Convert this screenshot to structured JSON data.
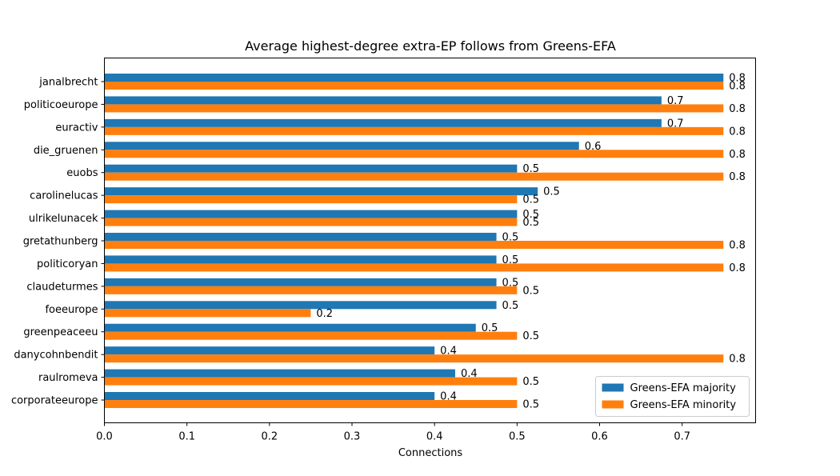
{
  "chart_data": {
    "type": "bar",
    "orientation": "horizontal",
    "title": "Average highest-degree extra-EP follows from Greens-EFA",
    "xlabel": "Connections",
    "ylabel": "",
    "xlim": [
      0,
      0.789
    ],
    "xticks": [
      0.0,
      0.1,
      0.2,
      0.3,
      0.4,
      0.5,
      0.6,
      0.7
    ],
    "xtick_labels": [
      "0.0",
      "0.1",
      "0.2",
      "0.3",
      "0.4",
      "0.5",
      "0.6",
      "0.7"
    ],
    "categories": [
      "janalbrecht",
      "politicoeurope",
      "euractiv",
      "die_gruenen",
      "euobs",
      "carolinelucas",
      "ulrikelunacek",
      "gretathunberg",
      "politicoryan",
      "claudeturmes",
      "foeeurope",
      "greenpeaceeu",
      "danycohnbendit",
      "raulromeva",
      "corporateeurope"
    ],
    "series": [
      {
        "name": "Greens-EFA majority",
        "color": "#1f77b4",
        "values": [
          0.75,
          0.675,
          0.675,
          0.575,
          0.5,
          0.525,
          0.5,
          0.475,
          0.475,
          0.475,
          0.475,
          0.45,
          0.4,
          0.425,
          0.4
        ],
        "labels": [
          "0.8",
          "0.7",
          "0.7",
          "0.6",
          "0.5",
          "0.5",
          "0.5",
          "0.5",
          "0.5",
          "0.5",
          "0.5",
          "0.5",
          "0.4",
          "0.4",
          "0.4"
        ]
      },
      {
        "name": "Greens-EFA minority",
        "color": "#ff7f0e",
        "values": [
          0.75,
          0.75,
          0.75,
          0.75,
          0.75,
          0.5,
          0.5,
          0.75,
          0.75,
          0.5,
          0.25,
          0.5,
          0.75,
          0.5,
          0.5
        ],
        "labels": [
          "0.8",
          "0.8",
          "0.8",
          "0.8",
          "0.8",
          "0.5",
          "0.5",
          "0.8",
          "0.8",
          "0.5",
          "0.2",
          "0.5",
          "0.8",
          "0.5",
          "0.5"
        ]
      }
    ],
    "legend_position": "lower right",
    "grid": false
  }
}
